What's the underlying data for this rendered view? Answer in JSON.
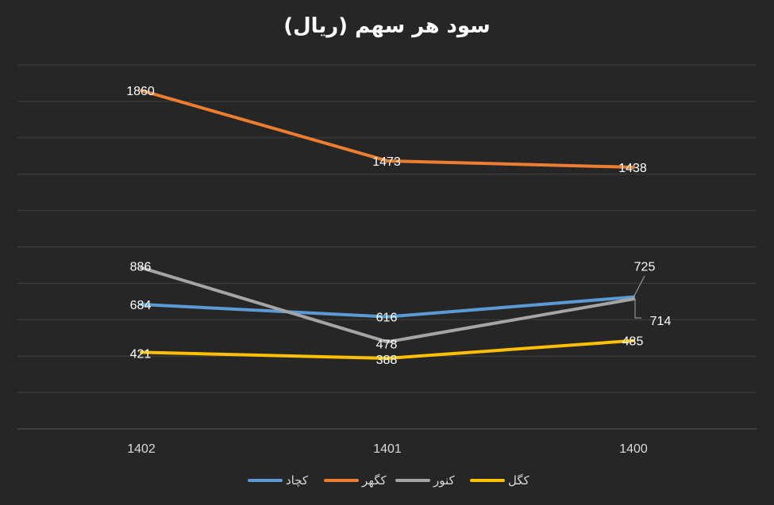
{
  "chart_data": {
    "type": "line",
    "title": "سود هر سهم (ریال)",
    "categories": [
      "1402",
      "1401",
      "1400"
    ],
    "ylim": [
      0,
      2000
    ],
    "grid": true,
    "legend_position": "bottom",
    "series": [
      {
        "name": "کچاد",
        "color": "#5b9bd5",
        "values": [
          684,
          616,
          725
        ]
      },
      {
        "name": "کگهر",
        "color": "#ed7d31",
        "values": [
          1860,
          1473,
          1438
        ]
      },
      {
        "name": "کنور",
        "color": "#a5a5a5",
        "values": [
          886,
          478,
          714
        ]
      },
      {
        "name": "کگل",
        "color": "#ffc000",
        "values": [
          421,
          388,
          485
        ]
      }
    ]
  }
}
